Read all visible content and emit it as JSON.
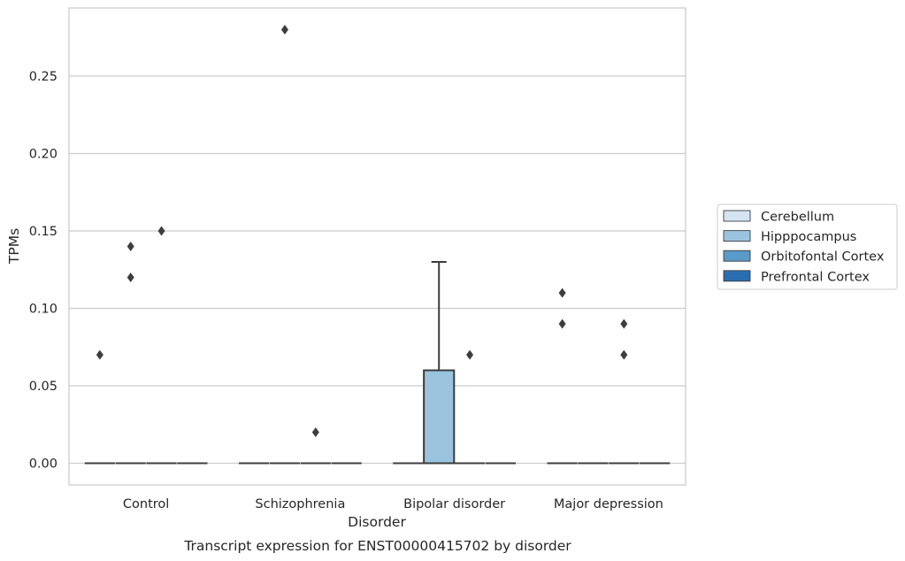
{
  "chart_data": {
    "type": "box",
    "xlabel": "Disorder",
    "ylabel": "TPMs",
    "caption": "Transcript expression for ENST00000415702 by disorder",
    "ylim": [
      -0.014,
      0.294
    ],
    "yticks": [
      "0.00",
      "0.05",
      "0.10",
      "0.15",
      "0.20",
      "0.25"
    ],
    "yticks_values": [
      0.0,
      0.05,
      0.1,
      0.15,
      0.2,
      0.25
    ],
    "grid": "horizontal",
    "legend_position": "right",
    "categories": [
      "Control",
      "Schizophrenia",
      "Bipolar disorder",
      "Major depression"
    ],
    "series": [
      {
        "name": "Cerebellum",
        "color": "#d4e4f2",
        "boxes": [
          {
            "q1": 0,
            "median": 0,
            "q3": 0,
            "whisker_low": 0,
            "whisker_high": 0,
            "outliers": [
              0.07
            ]
          },
          {
            "q1": 0,
            "median": 0,
            "q3": 0,
            "whisker_low": 0,
            "whisker_high": 0,
            "outliers": []
          },
          {
            "q1": 0,
            "median": 0,
            "q3": 0,
            "whisker_low": 0,
            "whisker_high": 0,
            "outliers": []
          },
          {
            "q1": 0,
            "median": 0,
            "q3": 0,
            "whisker_low": 0,
            "whisker_high": 0,
            "outliers": [
              0.11,
              0.09
            ]
          }
        ]
      },
      {
        "name": "Hipppocampus",
        "color": "#9ac4de",
        "boxes": [
          {
            "q1": 0,
            "median": 0,
            "q3": 0,
            "whisker_low": 0,
            "whisker_high": 0,
            "outliers": [
              0.14,
              0.12
            ]
          },
          {
            "q1": 0,
            "median": 0,
            "q3": 0,
            "whisker_low": 0,
            "whisker_high": 0,
            "outliers": [
              0.28
            ]
          },
          {
            "q1": 0,
            "median": 0,
            "q3": 0.06,
            "whisker_low": 0,
            "whisker_high": 0.13,
            "outliers": []
          },
          {
            "q1": 0,
            "median": 0,
            "q3": 0,
            "whisker_low": 0,
            "whisker_high": 0,
            "outliers": []
          }
        ]
      },
      {
        "name": "Orbitofontal Cortex",
        "color": "#5a9ac8",
        "boxes": [
          {
            "q1": 0,
            "median": 0,
            "q3": 0,
            "whisker_low": 0,
            "whisker_high": 0,
            "outliers": [
              0.15
            ]
          },
          {
            "q1": 0,
            "median": 0,
            "q3": 0,
            "whisker_low": 0,
            "whisker_high": 0,
            "outliers": [
              0.02
            ]
          },
          {
            "q1": 0,
            "median": 0,
            "q3": 0,
            "whisker_low": 0,
            "whisker_high": 0,
            "outliers": [
              0.07
            ]
          },
          {
            "q1": 0,
            "median": 0,
            "q3": 0,
            "whisker_low": 0,
            "whisker_high": 0,
            "outliers": [
              0.09,
              0.07
            ]
          }
        ]
      },
      {
        "name": "Prefrontal Cortex",
        "color": "#2a6eb0",
        "boxes": [
          {
            "q1": 0,
            "median": 0,
            "q3": 0,
            "whisker_low": 0,
            "whisker_high": 0,
            "outliers": []
          },
          {
            "q1": 0,
            "median": 0,
            "q3": 0,
            "whisker_low": 0,
            "whisker_high": 0,
            "outliers": []
          },
          {
            "q1": 0,
            "median": 0,
            "q3": 0,
            "whisker_low": 0,
            "whisker_high": 0,
            "outliers": []
          },
          {
            "q1": 0,
            "median": 0,
            "q3": 0,
            "whisker_low": 0,
            "whisker_high": 0,
            "outliers": []
          }
        ]
      }
    ]
  }
}
